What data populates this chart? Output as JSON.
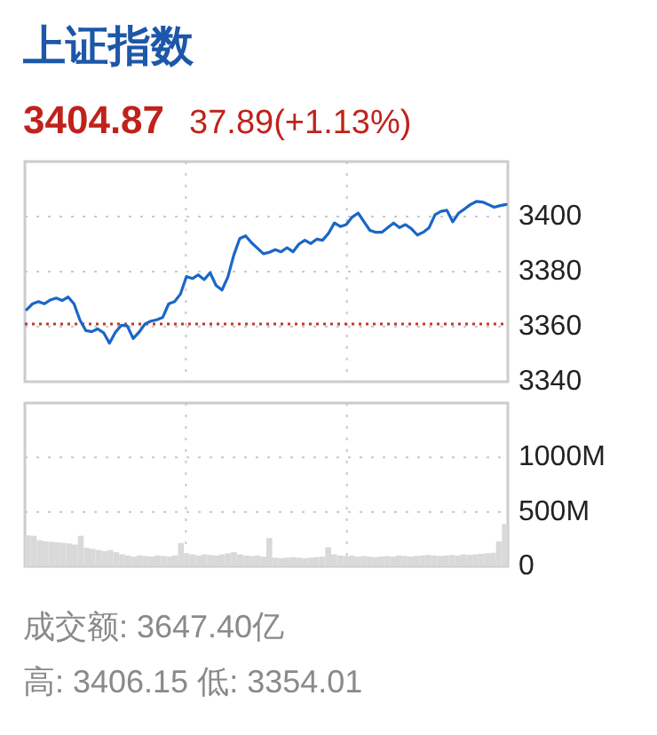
{
  "chart_data": [
    {
      "type": "line",
      "title": "上证指数",
      "subtitle": "3404.87",
      "annotations": [
        "37.89(+1.13%)"
      ],
      "categories": [
        null,
        null,
        null,
        null,
        null,
        null,
        null,
        null,
        null,
        null,
        null,
        null,
        null,
        null,
        null,
        null,
        null,
        null,
        null,
        null,
        null,
        null,
        null,
        null,
        null,
        null,
        null,
        null,
        null,
        null,
        null,
        null,
        null,
        null,
        null,
        null,
        null,
        null,
        null,
        null,
        null,
        null,
        null,
        null,
        null,
        null,
        null,
        null,
        null,
        null,
        null,
        null,
        null,
        null,
        null,
        null,
        null,
        null,
        null,
        null,
        null,
        null,
        null,
        null,
        null,
        null,
        null,
        null,
        null,
        null,
        null,
        null,
        null,
        null,
        null,
        null,
        null,
        null,
        null,
        null,
        null,
        null
      ],
      "series": [
        {
          "color": "#1a66c8",
          "values": [
            3366.2,
            3368.3,
            3369.1,
            3368.3,
            3369.7,
            3370.4,
            3369.5,
            3370.8,
            3368.3,
            3362.4,
            3358.6,
            3358.2,
            3359.2,
            3357.8,
            3354.0,
            3358.0,
            3360.5,
            3360.3,
            3355.7,
            3358.0,
            3361.0,
            3362.0,
            3362.5,
            3363.4,
            3368.3,
            3369.1,
            3371.9,
            3378.2,
            3377.5,
            3378.8,
            3377.1,
            3379.6,
            3375.0,
            3373.3,
            3378.0,
            3386.0,
            3392.0,
            3393.0,
            3390.5,
            3388.5,
            3386.5,
            3387.0,
            3388.0,
            3387.2,
            3388.7,
            3387.2,
            3390.0,
            3391.4,
            3390.2,
            3391.8,
            3391.4,
            3393.9,
            3397.7,
            3396.4,
            3397.1,
            3399.8,
            3401.3,
            3398.1,
            3395.0,
            3394.3,
            3394.3,
            3396.0,
            3397.7,
            3396.0,
            3397.1,
            3395.6,
            3393.3,
            3394.3,
            3396.0,
            3400.7,
            3401.9,
            3402.3,
            3398.1,
            3401.3,
            3402.8,
            3404.4,
            3405.5,
            3405.3,
            3404.4,
            3403.4,
            3404.0,
            3404.4
          ]
        }
      ],
      "ylim": [
        3340,
        3420
      ],
      "yticks": [
        3340,
        3360,
        3380,
        3400
      ],
      "ref_lines": [
        {
          "axis": "y",
          "value": 3361,
          "color": "#c0392b",
          "line_style": "dotted"
        }
      ],
      "grid": true,
      "tick_labels": "y"
    },
    {
      "type": "bar",
      "annotations": [
        "成交额: 3647.40亿",
        "高: 3406.15   低: 3354.01"
      ],
      "categories": [
        null,
        null,
        null,
        null,
        null,
        null,
        null,
        null,
        null,
        null,
        null,
        null,
        null,
        null,
        null,
        null,
        null,
        null,
        null,
        null,
        null,
        null,
        null,
        null,
        null,
        null,
        null,
        null,
        null,
        null,
        null,
        null,
        null,
        null,
        null,
        null,
        null,
        null,
        null,
        null,
        null,
        null,
        null,
        null,
        null,
        null,
        null,
        null,
        null,
        null,
        null,
        null,
        null,
        null,
        null,
        null,
        null,
        null,
        null,
        null,
        null,
        null,
        null,
        null,
        null,
        null,
        null,
        null,
        null,
        null,
        null,
        null,
        null,
        null,
        null,
        null,
        null,
        null,
        null,
        null,
        null,
        null
      ],
      "values": [
        285,
        280,
        240,
        230,
        225,
        220,
        215,
        210,
        200,
        280,
        170,
        160,
        150,
        140,
        150,
        130,
        110,
        100,
        90,
        100,
        95,
        90,
        100,
        95,
        90,
        100,
        215,
        120,
        110,
        100,
        110,
        105,
        100,
        110,
        120,
        130,
        110,
        100,
        95,
        100,
        90,
        260,
        80,
        75,
        80,
        85,
        80,
        75,
        80,
        85,
        90,
        175,
        110,
        100,
        95,
        100,
        90,
        95,
        90,
        85,
        90,
        95,
        90,
        100,
        95,
        90,
        95,
        100,
        105,
        100,
        95,
        100,
        105,
        100,
        110,
        105,
        110,
        115,
        120,
        125,
        230,
        390
      ],
      "color": "#d9d9d9",
      "ylim": [
        0,
        1500
      ],
      "yticks": [
        0,
        {
          "value": 500,
          "label": "500M"
        },
        {
          "value": 1000,
          "label": "1000M"
        }
      ],
      "grid": true,
      "tick_labels": "y"
    }
  ]
}
